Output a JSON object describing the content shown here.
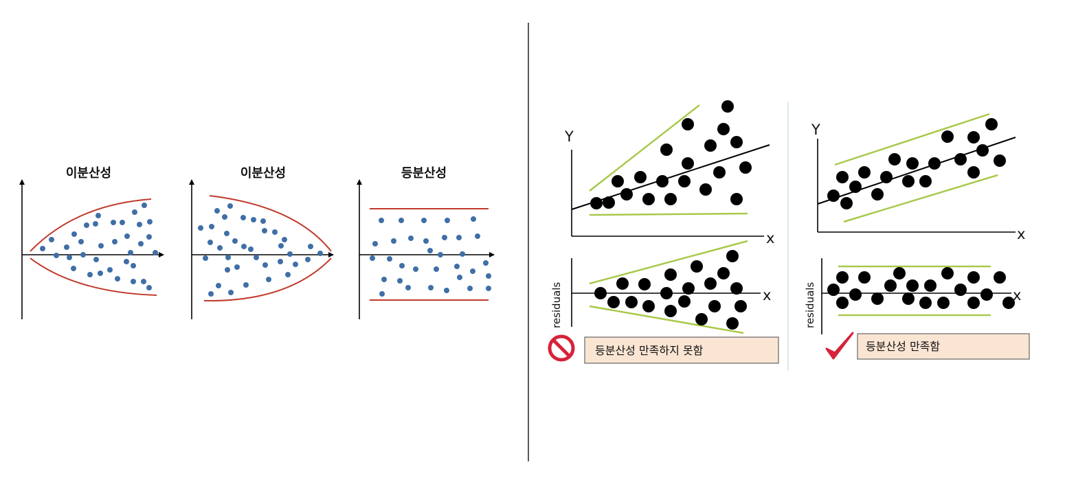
{
  "left_panels": [
    {
      "title": "이분산성",
      "pattern": "widening",
      "boundary_color": "#c0392b",
      "point_color": "#3f6fa6"
    },
    {
      "title": "이분산성",
      "pattern": "narrowing",
      "boundary_color": "#c0392b",
      "point_color": "#3f6fa6"
    },
    {
      "title": "등분산성",
      "pattern": "constant",
      "boundary_color": "#c0392b",
      "point_color": "#3f6fa6"
    }
  ],
  "right_panels": [
    {
      "scatter": {
        "y_axis_label": "Y",
        "x_axis_label": "x"
      },
      "residual": {
        "y_axis_label": "residuals",
        "x_axis_label": "x"
      },
      "verdict": {
        "text": "등분산성 만족하지 못함",
        "icon": "prohibited-icon",
        "bg_color": "#fae5d3"
      }
    },
    {
      "scatter": {
        "y_axis_label": "Y",
        "x_axis_label": "x"
      },
      "residual": {
        "y_axis_label": "residuals",
        "x_axis_label": "x"
      },
      "verdict": {
        "text": "등분산성 만족함",
        "icon": "checkmark-icon",
        "bg_color": "#fae5d3"
      }
    }
  ],
  "colors": {
    "band_line": "#a8c94a",
    "data_point": "#000000",
    "divider": "#222222",
    "icon_red": "#d6233a"
  }
}
